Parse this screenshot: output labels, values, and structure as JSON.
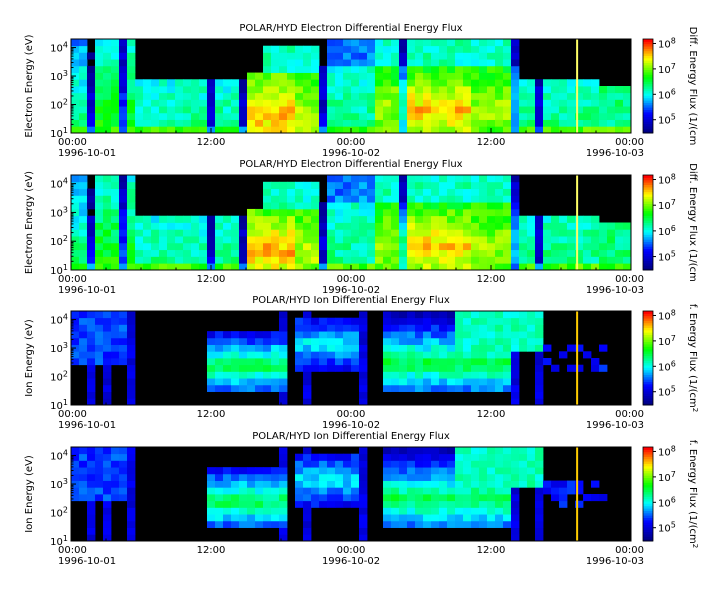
{
  "chart_data": [
    {
      "type": "heatmap",
      "title": "POLAR/HYD  Electron Differential Energy Flux",
      "ylabel": "Electron Energy (eV)",
      "zlabel": "Diff. Energy Flux (1/(cm",
      "y_scale": "log",
      "ylim": [
        10,
        20000
      ],
      "y_ticks": [
        "10^1",
        "10^2",
        "10^3",
        "10^4"
      ],
      "z_scale": "log",
      "zlim": [
        30000,
        150000000
      ],
      "z_ticks": [
        "10^5",
        "10^6",
        "10^7",
        "10^8"
      ],
      "x_ticks": [
        {
          "time": "00:00",
          "date": "1996-10-01"
        },
        {
          "time": "12:00",
          "date": ""
        },
        {
          "time": "00:00",
          "date": "1996-10-02"
        },
        {
          "time": "12:00",
          "date": ""
        },
        {
          "time": "00:00",
          "date": "1996-10-03"
        }
      ],
      "xlim": [
        "1996-10-01 00:00",
        "1996-10-03 00:00"
      ],
      "colormap": [
        "#000080",
        "#0000ff",
        "#00ffff",
        "#00ff00",
        "#ffff00",
        "#ff0000"
      ]
    },
    {
      "type": "heatmap",
      "title": "POLAR/HYD  Electron Differential Energy Flux",
      "ylabel": "Electron Energy (eV)",
      "zlabel": "Diff. Energy Flux (1/(cm",
      "y_scale": "log",
      "ylim": [
        10,
        20000
      ],
      "y_ticks": [
        "10^1",
        "10^2",
        "10^3",
        "10^4"
      ],
      "z_scale": "log",
      "zlim": [
        30000,
        150000000
      ],
      "z_ticks": [
        "10^5",
        "10^6",
        "10^7",
        "10^8"
      ],
      "x_ticks": [
        {
          "time": "00:00",
          "date": "1996-10-01"
        },
        {
          "time": "12:00",
          "date": ""
        },
        {
          "time": "00:00",
          "date": "1996-10-02"
        },
        {
          "time": "12:00",
          "date": ""
        },
        {
          "time": "00:00",
          "date": "1996-10-03"
        }
      ],
      "xlim": [
        "1996-10-01 00:00",
        "1996-10-03 00:00"
      ],
      "colormap": [
        "#000080",
        "#0000ff",
        "#00ffff",
        "#00ff00",
        "#ffff00",
        "#ff0000"
      ]
    },
    {
      "type": "heatmap",
      "title": "POLAR/HYD  Ion Differential Energy Flux",
      "ylabel": "Ion Energy (eV)",
      "zlabel": "f. Energy Flux (1/(cm^2",
      "y_scale": "log",
      "ylim": [
        10,
        20000
      ],
      "y_ticks": [
        "10^1",
        "10^2",
        "10^3",
        "10^4"
      ],
      "z_scale": "log",
      "zlim": [
        30000,
        150000000
      ],
      "z_ticks": [
        "10^5",
        "10^6",
        "10^7",
        "10^8"
      ],
      "x_ticks": [
        {
          "time": "00:00",
          "date": "1996-10-01"
        },
        {
          "time": "12:00",
          "date": ""
        },
        {
          "time": "00:00",
          "date": "1996-10-02"
        },
        {
          "time": "12:00",
          "date": ""
        },
        {
          "time": "00:00",
          "date": "1996-10-03"
        }
      ],
      "xlim": [
        "1996-10-01 00:00",
        "1996-10-03 00:00"
      ],
      "colormap": [
        "#000080",
        "#0000ff",
        "#00ffff",
        "#00ff00",
        "#ffff00",
        "#ff0000"
      ]
    },
    {
      "type": "heatmap",
      "title": "POLAR/HYD  Ion Differential Energy Flux",
      "ylabel": "Ion Energy (eV)",
      "zlabel": "f. Energy Flux (1/(cm^2",
      "y_scale": "log",
      "ylim": [
        10,
        20000
      ],
      "y_ticks": [
        "10^1",
        "10^2",
        "10^3",
        "10^4"
      ],
      "z_scale": "log",
      "zlim": [
        30000,
        150000000
      ],
      "z_ticks": [
        "10^5",
        "10^6",
        "10^7",
        "10^8"
      ],
      "x_ticks": [
        {
          "time": "00:00",
          "date": "1996-10-01"
        },
        {
          "time": "12:00",
          "date": ""
        },
        {
          "time": "00:00",
          "date": "1996-10-02"
        },
        {
          "time": "12:00",
          "date": ""
        },
        {
          "time": "00:00",
          "date": "1996-10-03"
        }
      ],
      "xlim": [
        "1996-10-01 00:00",
        "1996-10-03 00:00"
      ],
      "colormap": [
        "#000080",
        "#0000ff",
        "#00ffff",
        "#00ff00",
        "#ffff00",
        "#ff0000"
      ]
    }
  ]
}
